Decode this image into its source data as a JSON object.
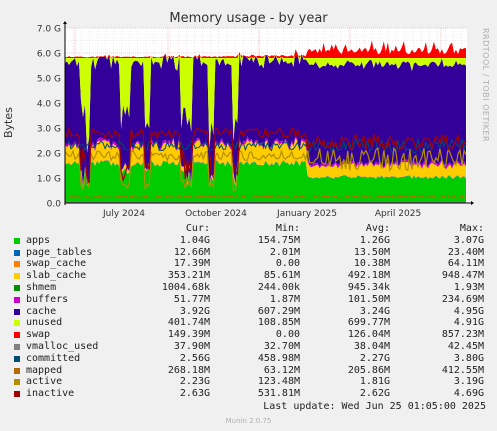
{
  "chart_data": {
    "type": "area",
    "title": "Memory usage - by year",
    "ylabel": "Bytes",
    "side_label": "RRDTOOL / TOBI OETIKER",
    "ylim": [
      0,
      7.0
    ],
    "y_ticks": [
      "0.0",
      "1.0 G",
      "2.0 G",
      "3.0 G",
      "4.0 G",
      "5.0 G",
      "6.0 G",
      "7.0 G"
    ],
    "x_ticks": [
      "July 2024",
      "October 2024",
      "January 2025",
      "April 2025"
    ],
    "columns": [
      "Cur:",
      "Min:",
      "Avg:",
      "Max:"
    ],
    "series": [
      {
        "name": "apps",
        "color": "#00CC00",
        "cur": "1.04G",
        "min": "154.75M",
        "avg": "1.26G",
        "max": "3.07G"
      },
      {
        "name": "page_tables",
        "color": "#0066B3",
        "cur": "12.66M",
        "min": "2.01M",
        "avg": "13.50M",
        "max": "23.40M"
      },
      {
        "name": "swap_cache",
        "color": "#FF8000",
        "cur": "17.39M",
        "min": "0.00",
        "avg": "10.38M",
        "max": "64.11M"
      },
      {
        "name": "slab_cache",
        "color": "#FFCC00",
        "cur": "353.21M",
        "min": "85.61M",
        "avg": "492.18M",
        "max": "948.47M"
      },
      {
        "name": "shmem",
        "color": "#008F00",
        "cur": "1004.68k",
        "min": "244.00k",
        "avg": "945.34k",
        "max": "1.93M"
      },
      {
        "name": "buffers",
        "color": "#CC00CC",
        "cur": "51.77M",
        "min": "1.87M",
        "avg": "101.50M",
        "max": "234.69M"
      },
      {
        "name": "cache",
        "color": "#330099",
        "cur": "3.92G",
        "min": "607.29M",
        "avg": "3.24G",
        "max": "4.95G"
      },
      {
        "name": "unused",
        "color": "#CCFF00",
        "cur": "401.74M",
        "min": "108.85M",
        "avg": "699.77M",
        "max": "4.91G"
      },
      {
        "name": "swap",
        "color": "#FF0000",
        "cur": "149.39M",
        "min": "0.00",
        "avg": "126.04M",
        "max": "857.23M"
      },
      {
        "name": "vmalloc_used",
        "color": "#808080",
        "cur": "37.90M",
        "min": "32.70M",
        "avg": "38.04M",
        "max": "42.45M"
      },
      {
        "name": "committed",
        "color": "#004D73",
        "cur": "2.56G",
        "min": "458.98M",
        "avg": "2.27G",
        "max": "3.80G"
      },
      {
        "name": "mapped",
        "color": "#B36B00",
        "cur": "268.18M",
        "min": "63.12M",
        "avg": "205.86M",
        "max": "412.55M"
      },
      {
        "name": "active",
        "color": "#B38F00",
        "cur": "2.23G",
        "min": "123.48M",
        "avg": "1.81G",
        "max": "3.19G"
      },
      {
        "name": "inactive",
        "color": "#A30000",
        "cur": "2.63G",
        "min": "531.81M",
        "avg": "2.62G",
        "max": "4.69G"
      }
    ],
    "last_update": "Last update: Wed Jun 25 01:05:00 2025",
    "footer": "Munin 2.0.75"
  }
}
